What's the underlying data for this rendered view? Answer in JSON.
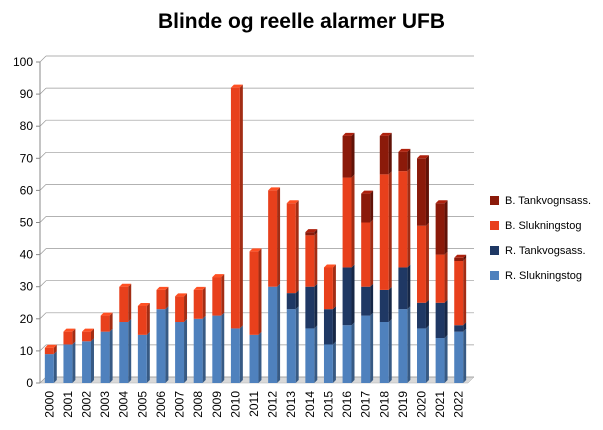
{
  "chart_data": {
    "type": "bar",
    "stacked": true,
    "title": "Blinde og reelle alarmer UFB",
    "xlabel": "",
    "ylabel": "",
    "ylim": [
      0,
      100
    ],
    "yticks": [
      0,
      10,
      20,
      30,
      40,
      50,
      60,
      70,
      80,
      90,
      100
    ],
    "grid": true,
    "legend_position": "right",
    "categories": [
      "2000",
      "2001",
      "2002",
      "2003",
      "2004",
      "2005",
      "2006",
      "2007",
      "2008",
      "2009",
      "2010",
      "2011",
      "2012",
      "2013",
      "2014",
      "2015",
      "2016",
      "2017",
      "2018",
      "2019",
      "2020",
      "2021",
      "2022"
    ],
    "series": [
      {
        "name": "R. Slukningstog",
        "color": "#4f81bd",
        "values": [
          9,
          12,
          13,
          16,
          19,
          15,
          23,
          19,
          20,
          21,
          17,
          15,
          30,
          23,
          17,
          12,
          18,
          21,
          19,
          23,
          17,
          14,
          16
        ]
      },
      {
        "name": "R. Tankvogsass.",
        "color": "#1f3864",
        "values": [
          0,
          0,
          0,
          0,
          0,
          0,
          0,
          0,
          0,
          0,
          0,
          0,
          0,
          5,
          13,
          11,
          18,
          9,
          10,
          13,
          8,
          11,
          2
        ]
      },
      {
        "name": "B. Slukningstog",
        "color": "#e8401c",
        "values": [
          2,
          4,
          3,
          5,
          11,
          9,
          6,
          8,
          9,
          12,
          75,
          26,
          30,
          28,
          16,
          13,
          28,
          20,
          36,
          30,
          24,
          15,
          20
        ]
      },
      {
        "name": "B. Tankvognsass.",
        "color": "#8b1a0a",
        "values": [
          0,
          0,
          0,
          0,
          0,
          0,
          0,
          0,
          0,
          0,
          0,
          0,
          0,
          0,
          1,
          0,
          13,
          9,
          12,
          6,
          21,
          16,
          1
        ]
      }
    ],
    "legend_order": [
      "B. Tankvognsass.",
      "B. Slukningstog",
      "R. Tankvogsass.",
      "R. Slukningstog"
    ]
  }
}
